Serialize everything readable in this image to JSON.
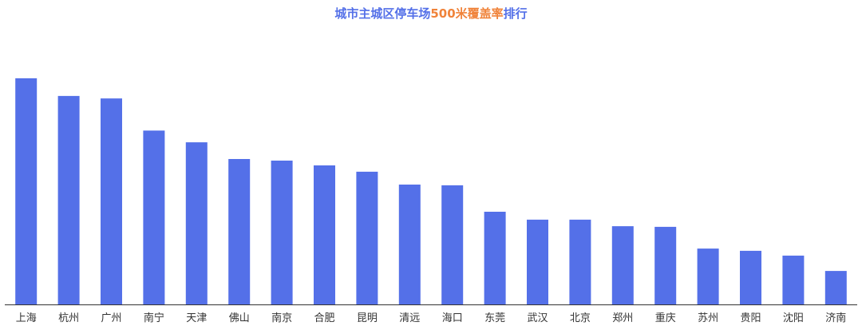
{
  "chart_data": {
    "type": "bar",
    "title_parts": [
      {
        "text": "城市主城区停车场",
        "color": "#5470e8"
      },
      {
        "text": "500米覆盖率",
        "color": "#f0833a"
      },
      {
        "text": "排行",
        "color": "#5470e8"
      }
    ],
    "categories": [
      "上海",
      "杭州",
      "广州",
      "南宁",
      "天津",
      "佛山",
      "南京",
      "合肥",
      "昆明",
      "清远",
      "海口",
      "东莞",
      "武汉",
      "北京",
      "郑州",
      "重庆",
      "苏州",
      "贵阳",
      "沈阳",
      "济南"
    ],
    "values": [
      100,
      92.2,
      91.1,
      76.9,
      71.7,
      64.3,
      63.6,
      61.5,
      58.7,
      53.0,
      52.7,
      41.0,
      37.5,
      37.5,
      34.6,
      34.3,
      24.7,
      23.7,
      21.6,
      14.8
    ],
    "ylim": [
      0,
      100
    ],
    "bar_color": "#5470e8",
    "axis_color": "#333333"
  }
}
